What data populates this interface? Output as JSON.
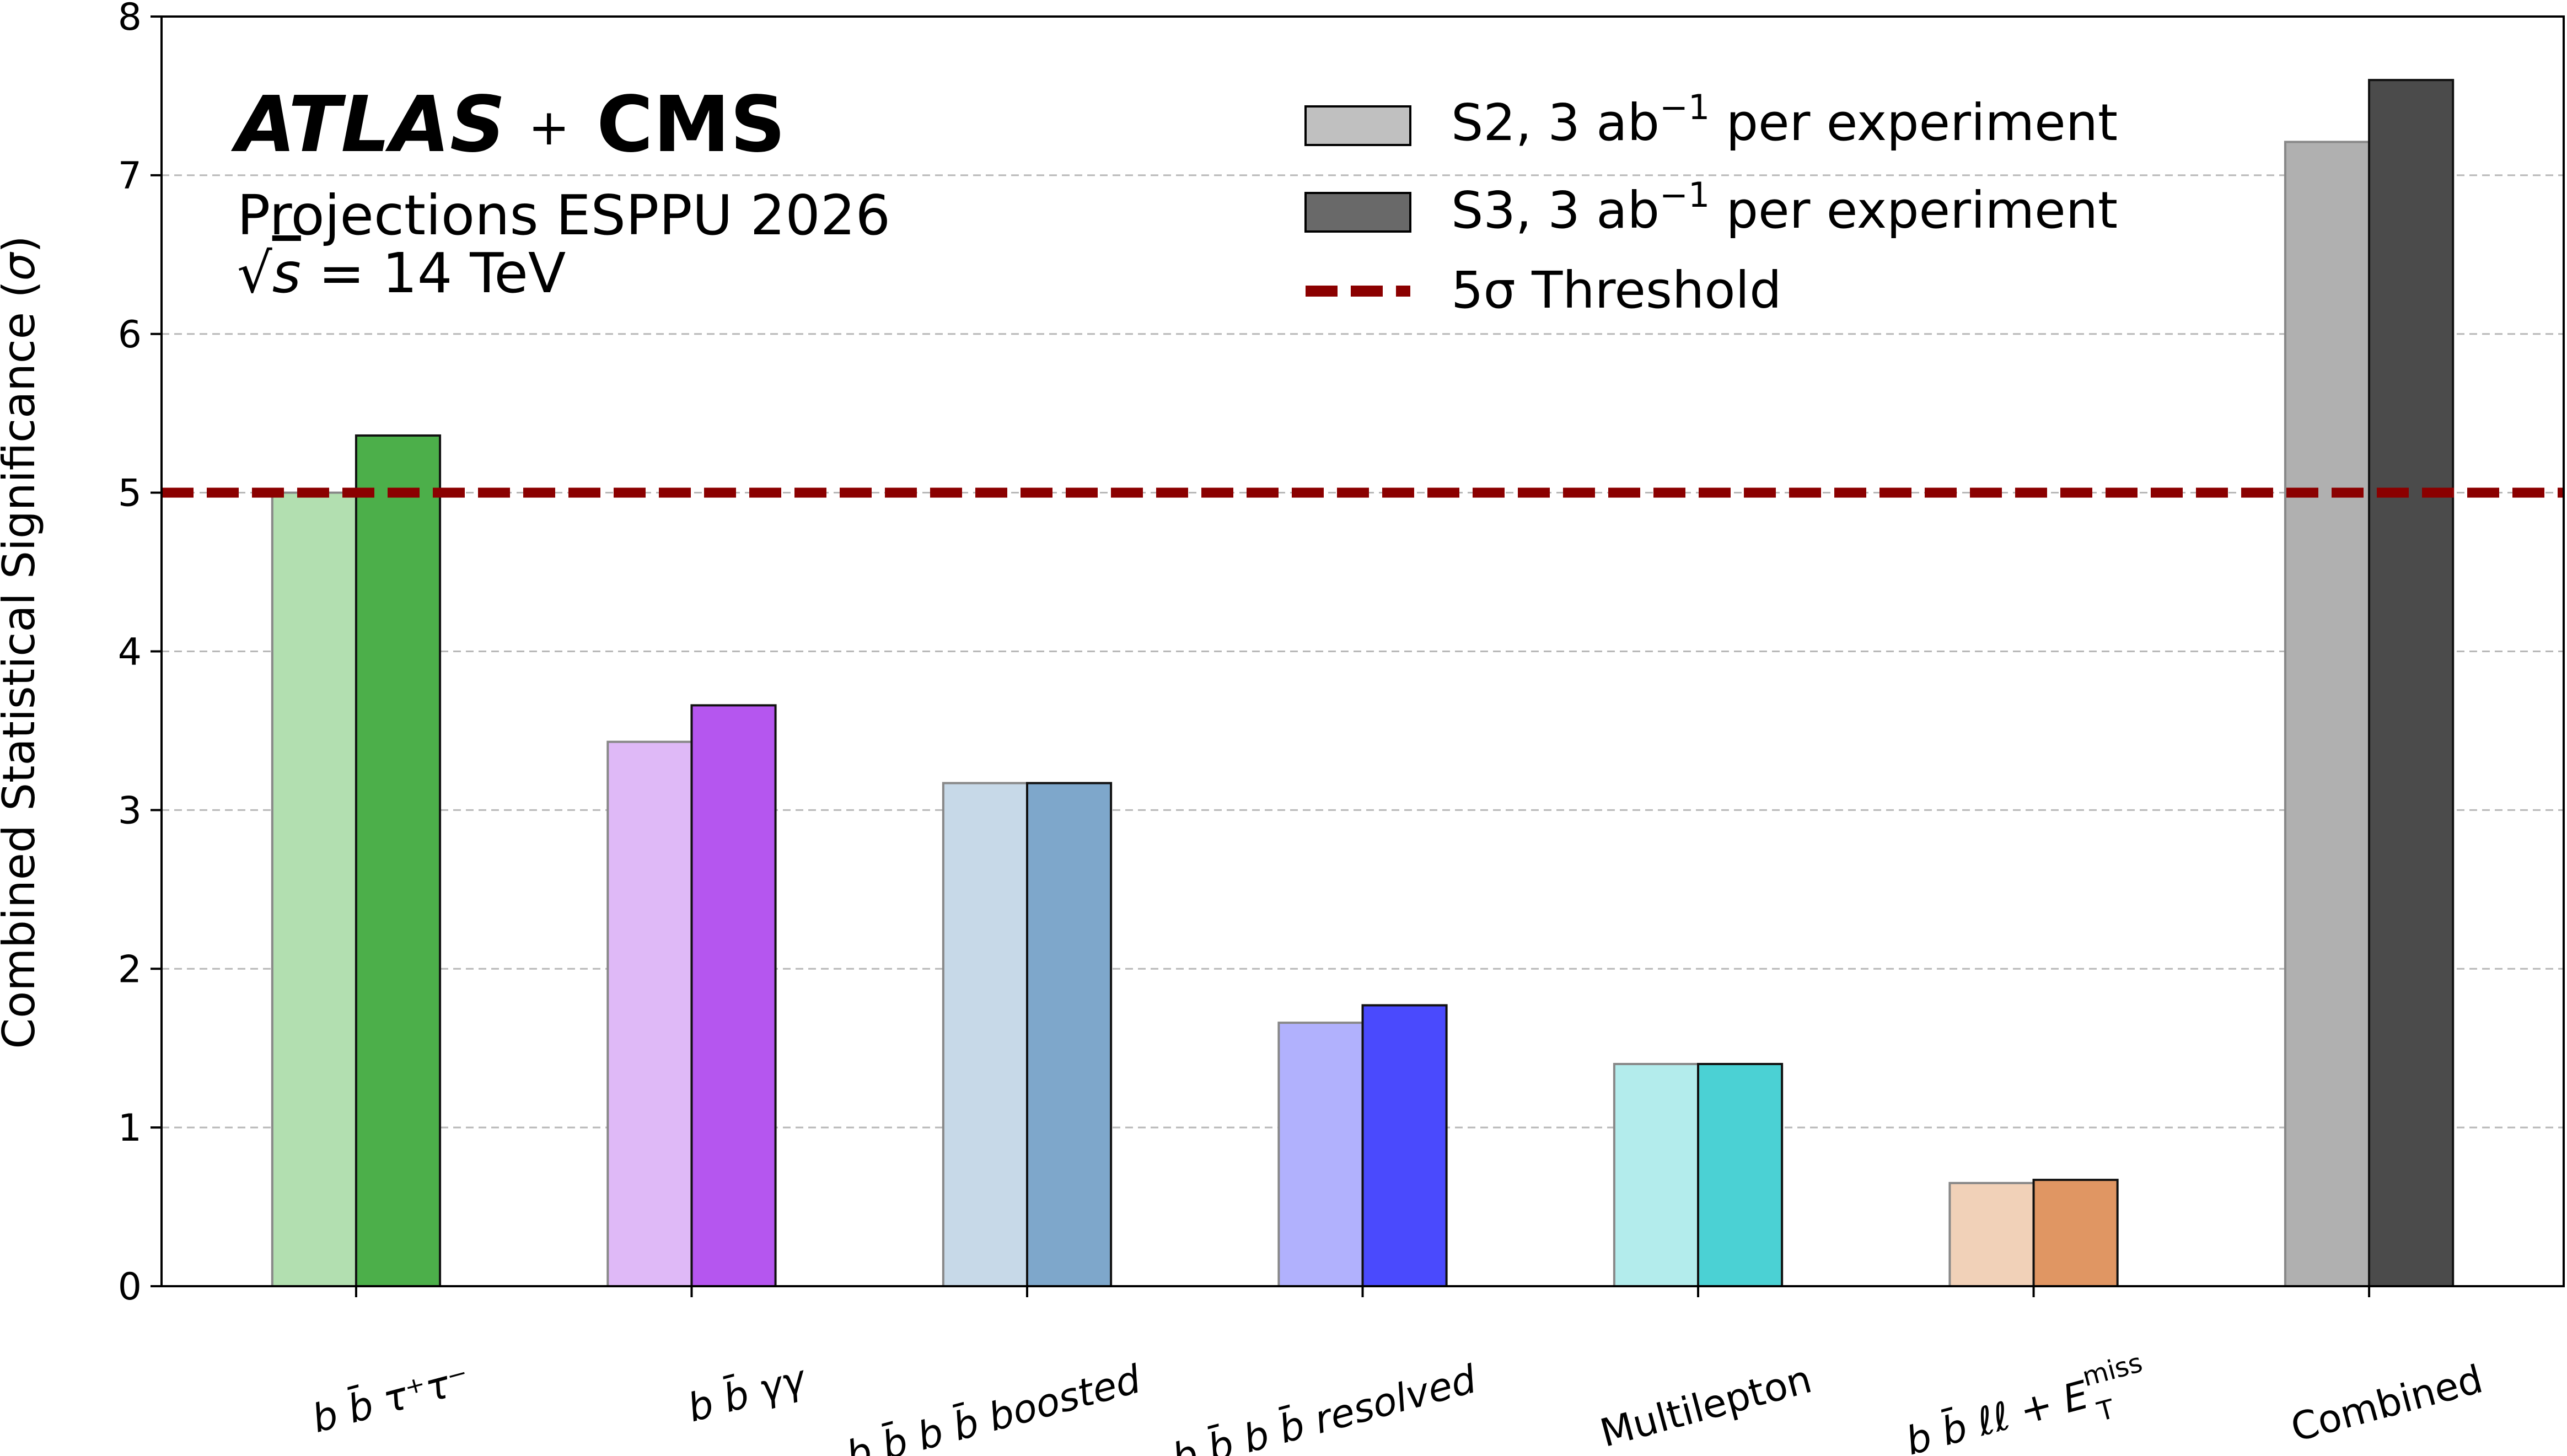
{
  "header": {
    "brand_atlas": "ATLAS",
    "brand_plus": "+",
    "brand_cms": "CMS",
    "projection": "Projections ESPPU 2026",
    "energy_sqrt": "√",
    "energy_s": "s",
    "energy_rest": " = 14 TeV"
  },
  "chart_data": {
    "type": "bar",
    "ylabel_main": "Combined Statistical Significance (",
    "ylabel_sigma": "σ",
    "ylabel_close": ")",
    "ylim": [
      0,
      8
    ],
    "yticks": [
      "0",
      "1",
      "2",
      "3",
      "4",
      "5",
      "6",
      "7",
      "8"
    ],
    "grid": "horizontal dashed",
    "legend_position": "top-center",
    "categories": [
      {
        "id": "bbtautau",
        "label": "b b̄ τ⁺τ⁻",
        "color_s2": "#b2dfb0",
        "color_s3": "#4caf4a"
      },
      {
        "id": "bbgamgam",
        "label": "b b̄ γγ",
        "color_s2": "#dfb9f7",
        "color_s3": "#b556ef"
      },
      {
        "id": "bbbb_boosted",
        "label": "b b̄ b b̄ boosted",
        "color_s2": "#c7d9e8",
        "color_s3": "#7ea7cb"
      },
      {
        "id": "bbbb_resolved",
        "label": "b b̄ b b̄ resolved",
        "color_s2": "#b1b1fd",
        "color_s3": "#4a4afd"
      },
      {
        "id": "multilepton",
        "label": "Multilepton",
        "color_s2": "#b3ecec",
        "color_s3": "#4bd1d4"
      },
      {
        "id": "bbll_met",
        "label": "b b̄ ℓℓ + E_T^miss",
        "color_s2": "#f1d1b8",
        "color_s3": "#e09663"
      },
      {
        "id": "combined",
        "label": "Combined",
        "color_s2": "#b0b0b0",
        "color_s3": "#4b4b4b"
      }
    ],
    "series": [
      {
        "name": "S2, 3 ab⁻¹ per experiment",
        "values": [
          5.0,
          3.43,
          3.17,
          1.66,
          1.4,
          0.65,
          7.21
        ]
      },
      {
        "name": "S3, 3 ab⁻¹ per experiment",
        "values": [
          5.36,
          3.66,
          3.17,
          1.77,
          1.4,
          0.67,
          7.6
        ]
      }
    ],
    "threshold": {
      "name": "5σ Threshold",
      "value": 5,
      "color": "#8b0000"
    }
  },
  "legend": {
    "s2_prefix": "S2, 3 ab",
    "s2_exp": "−1",
    "s2_suffix": " per experiment",
    "s3_prefix": "S3, 3 ab",
    "s3_exp": "−1",
    "s3_suffix": " per experiment",
    "threshold": "5σ Threshold",
    "s2_color": "#c0c0c0",
    "s3_color": "#696969"
  }
}
